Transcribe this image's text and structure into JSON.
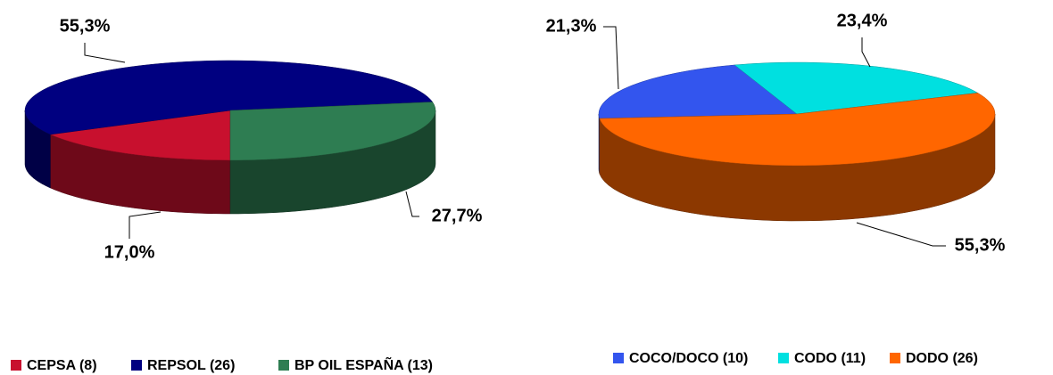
{
  "chart_data": [
    {
      "type": "pie",
      "categories": [
        "CEPSA (8)",
        "REPSOL (26)",
        "BP OIL ESPAÑA (13)"
      ],
      "values": [
        17.0,
        55.3,
        27.7
      ],
      "value_labels": [
        "17,0%",
        "55,3%",
        "27,7%"
      ],
      "colors": [
        "#c8102e",
        "#000080",
        "#2e7d52"
      ]
    },
    {
      "type": "pie",
      "categories": [
        "COCO/DOCO (10)",
        "CODO (11)",
        "DODO (26)"
      ],
      "values": [
        21.3,
        23.4,
        55.3
      ],
      "value_labels": [
        "21,3%",
        "23,4%",
        "55,3%"
      ],
      "colors": [
        "#3355ee",
        "#00e0e0",
        "#ff6600"
      ]
    }
  ]
}
